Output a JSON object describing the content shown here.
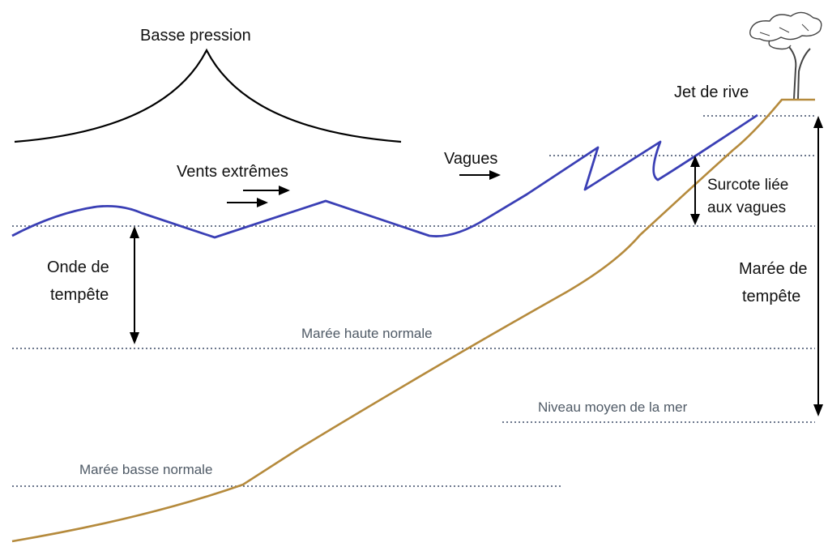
{
  "labels": {
    "basse_pression": "Basse pression",
    "vents_extremes": "Vents extrêmes",
    "vagues": "Vagues",
    "jet_de_rive": "Jet de rive",
    "surcote_line1": "Surcote liée",
    "surcote_line2": "aux vagues",
    "onde_line1": "Onde de",
    "onde_line2": "tempête",
    "maree_tempete_line1": "Marée de",
    "maree_tempete_line2": "tempête",
    "maree_haute": "Marée haute normale",
    "niveau_moyen": "Niveau moyen de la mer",
    "maree_basse": "Marée basse normale"
  },
  "colors": {
    "wave": "#3a3fb5",
    "shore": "#b58a3c",
    "pressure": "#000000",
    "dotted": "#3b4a66",
    "grey_text": "#4f5a66"
  },
  "icons": [
    "tree-icon"
  ]
}
